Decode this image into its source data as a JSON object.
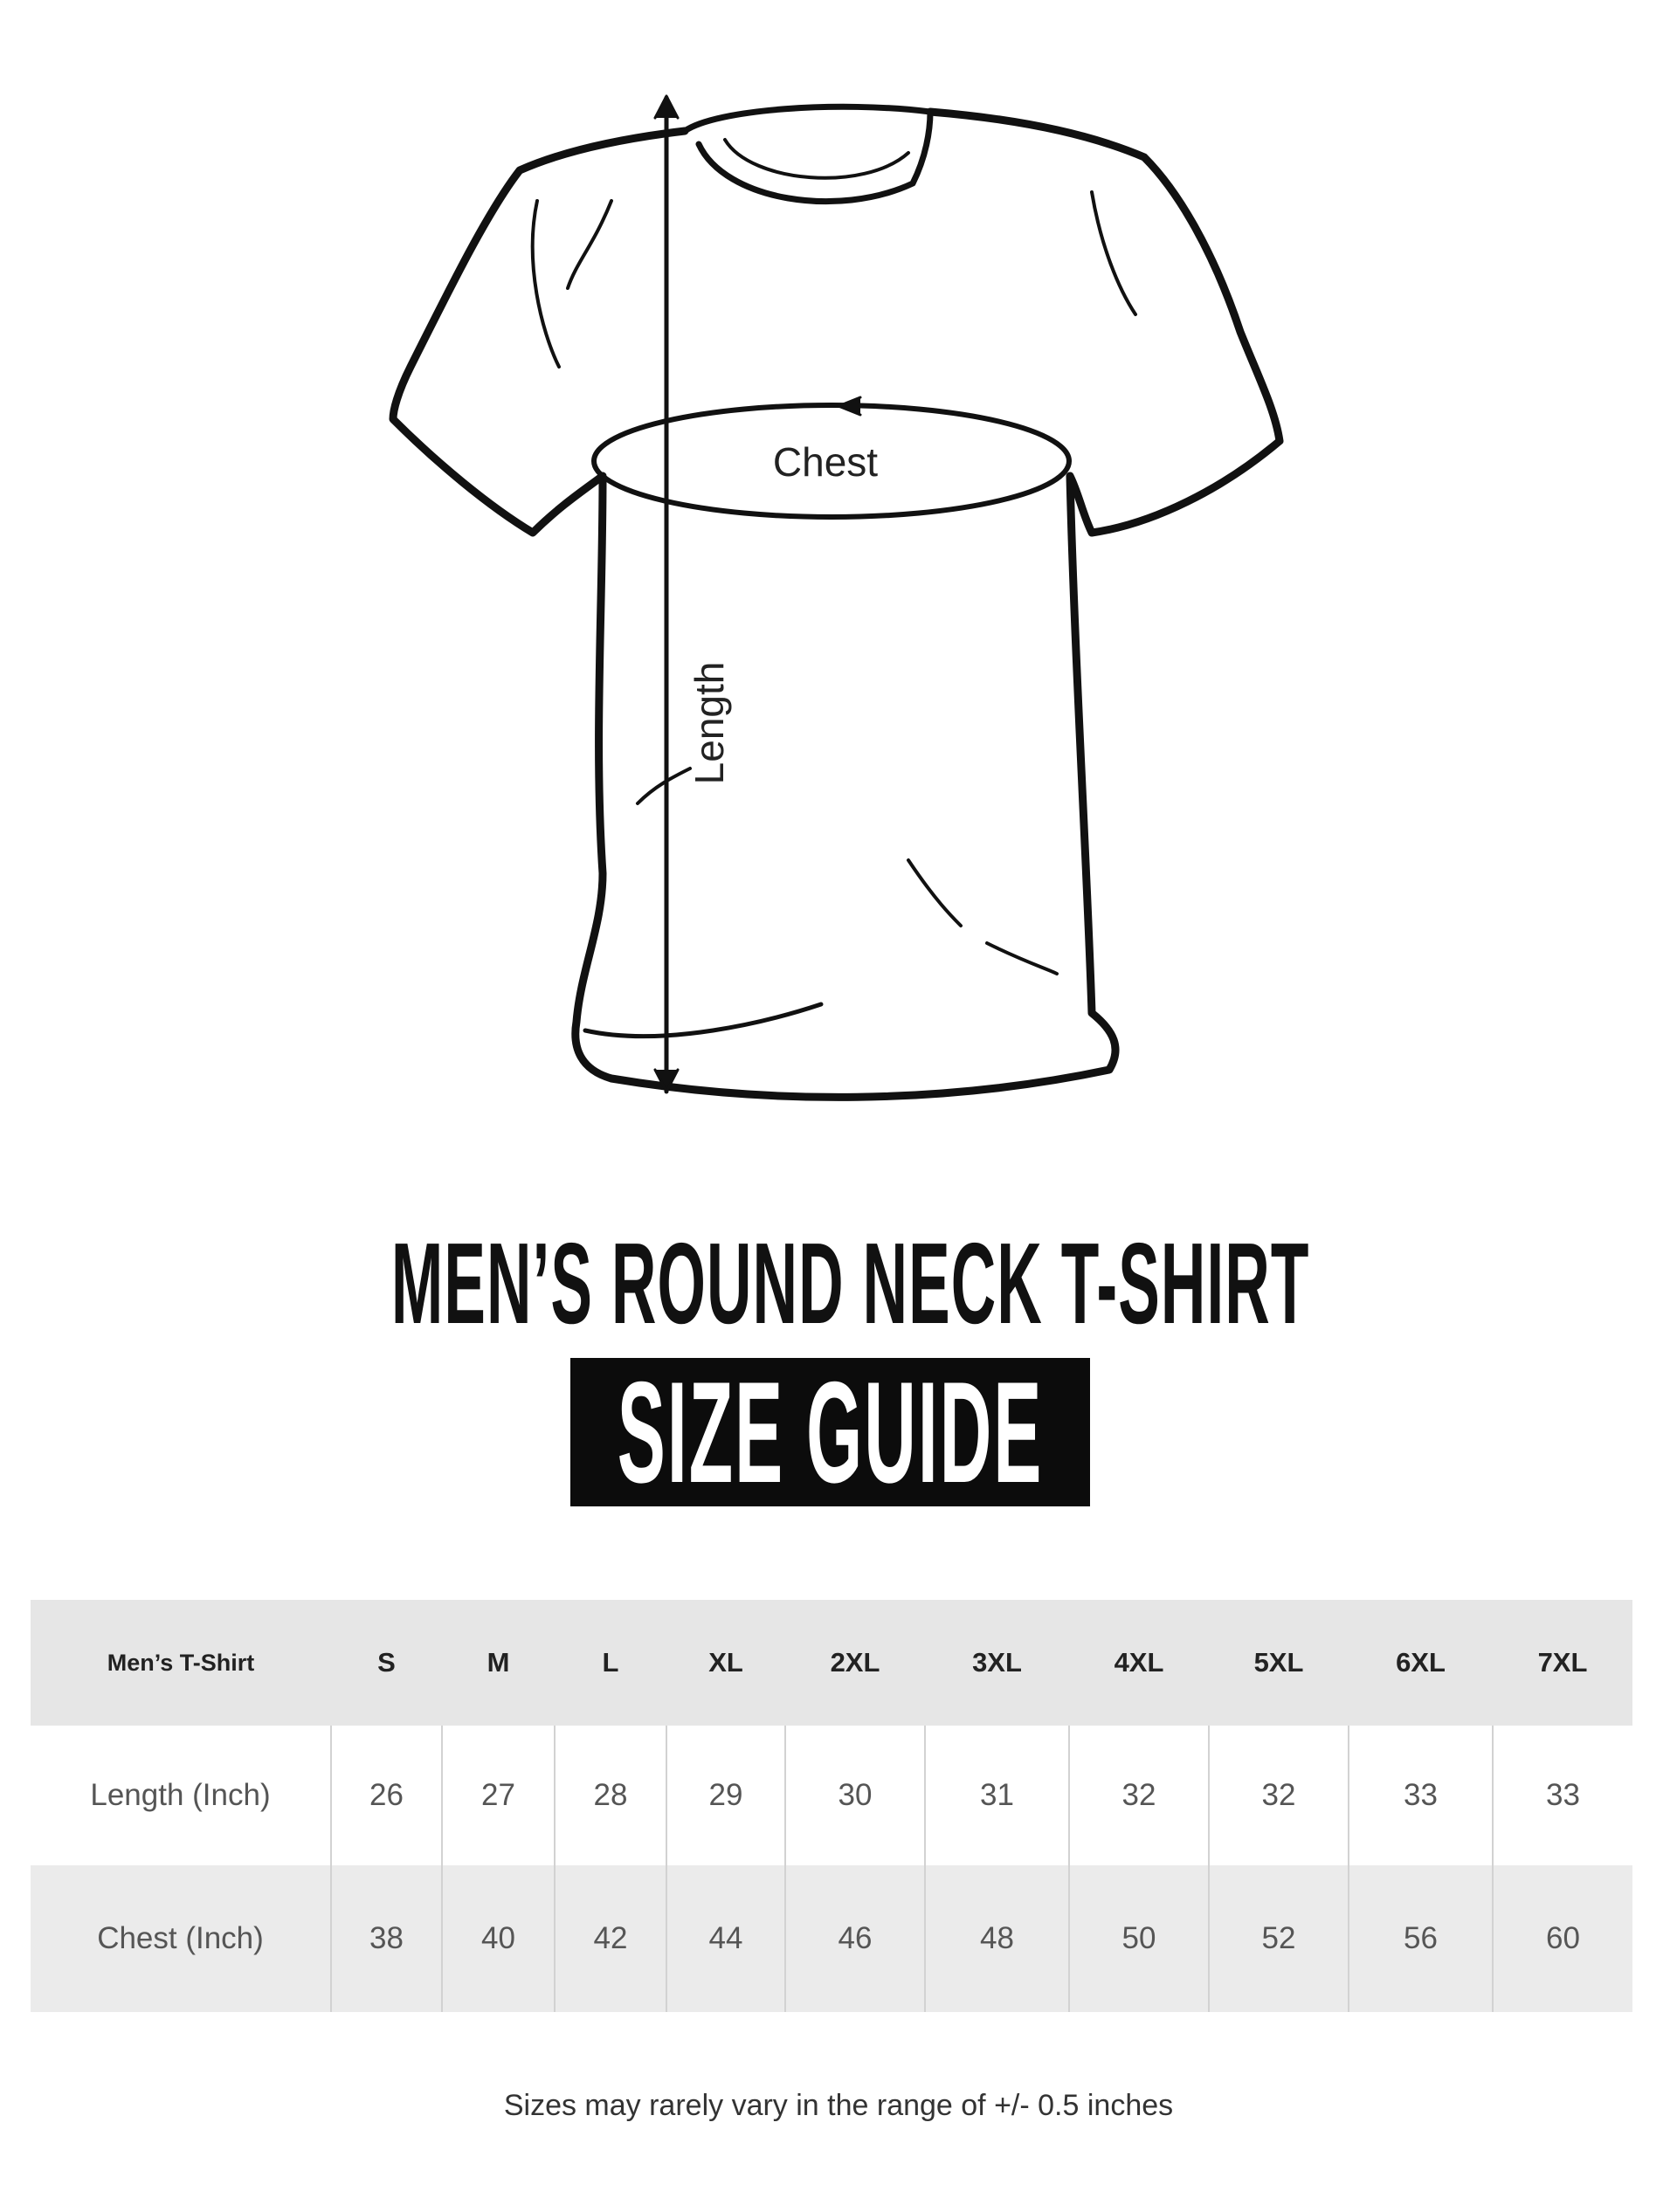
{
  "diagram": {
    "chest_label": "Chest",
    "length_label": "Length"
  },
  "title": "MEN’S ROUND NECK T-SHIRT",
  "badge": "SIZE GUIDE",
  "table": {
    "header": [
      "Men’s T-Shirt",
      "S",
      "M",
      "L",
      "XL",
      "2XL",
      "3XL",
      "4XL",
      "5XL",
      "6XL",
      "7XL"
    ],
    "rows": [
      [
        "Length (Inch)",
        "26",
        "27",
        "28",
        "29",
        "30",
        "31",
        "32",
        "32",
        "33",
        "33"
      ],
      [
        "Chest (Inch)",
        "38",
        "40",
        "42",
        "44",
        "46",
        "48",
        "50",
        "52",
        "56",
        "60"
      ]
    ]
  },
  "note": "Sizes may rarely vary in the range of +/- 0.5 inches"
}
